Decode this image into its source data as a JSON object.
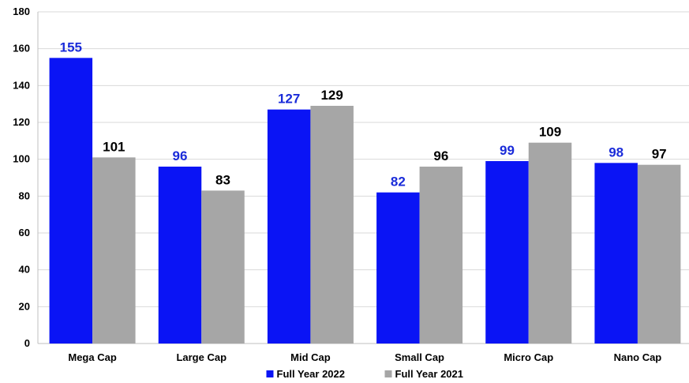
{
  "chart_data": {
    "type": "bar",
    "categories": [
      "Mega Cap",
      "Large Cap",
      "Mid Cap",
      "Small Cap",
      "Micro Cap",
      "Nano Cap"
    ],
    "series": [
      {
        "name": "Full Year 2022",
        "values": [
          155,
          96,
          127,
          82,
          99,
          98
        ],
        "color": "#0a14f5",
        "label_color": "#1a2bd9"
      },
      {
        "name": "Full Year 2021",
        "values": [
          101,
          83,
          129,
          96,
          109,
          97
        ],
        "color": "#a6a6a6",
        "label_color": "#000000"
      }
    ],
    "ylim": [
      0,
      180
    ],
    "yticks": [
      0,
      20,
      40,
      60,
      80,
      100,
      120,
      140,
      160,
      180
    ],
    "title": "",
    "xlabel": "",
    "ylabel": "",
    "grid": true,
    "legend_position": "bottom"
  }
}
